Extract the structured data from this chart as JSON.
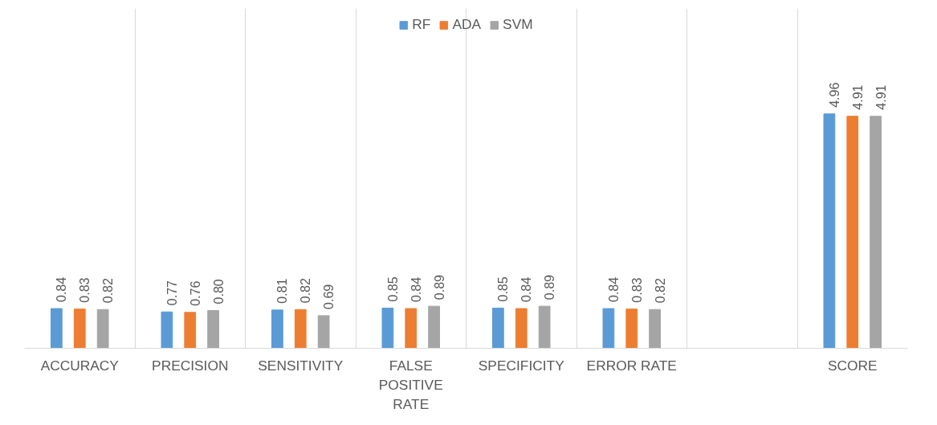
{
  "chart_data": {
    "type": "bar",
    "categories": [
      "ACCURACY",
      "PRECISION",
      "SENSITIVITY",
      "FALSE POSITIVE RATE",
      "SPECIFICITY",
      "ERROR RATE",
      null,
      "SCORE"
    ],
    "series": [
      {
        "name": "RF",
        "color": "#5b9bd5",
        "values": [
          0.84,
          0.77,
          0.81,
          0.85,
          0.85,
          0.84,
          null,
          4.96
        ],
        "value_labels": [
          "0.84",
          "0.77",
          "0.81",
          "0.85",
          "0.85",
          "0.84",
          null,
          "4.96"
        ]
      },
      {
        "name": "ADA",
        "color": "#ed7d31",
        "values": [
          0.83,
          0.76,
          0.82,
          0.84,
          0.84,
          0.83,
          null,
          4.91
        ],
        "value_labels": [
          "0.83",
          "0.76",
          "0.82",
          "0.84",
          "0.84",
          "0.83",
          null,
          "4.91"
        ]
      },
      {
        "name": "SVM",
        "color": "#a5a5a5",
        "values": [
          0.82,
          0.8,
          0.69,
          0.89,
          0.89,
          0.82,
          null,
          4.91
        ],
        "value_labels": [
          "0.82",
          "0.80",
          "0.69",
          "0.89",
          "0.89",
          "0.82",
          null,
          "4.91"
        ]
      }
    ],
    "legend": "top",
    "grid": "x"
  }
}
